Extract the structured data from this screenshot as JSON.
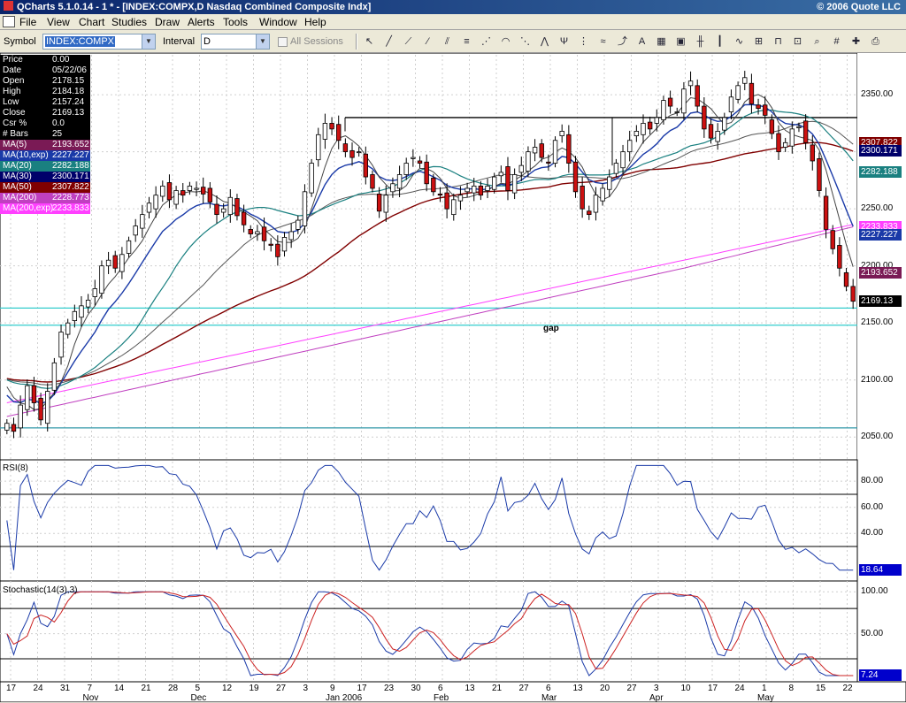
{
  "window": {
    "title": "QCharts 5.1.0.14 - 1 * - [INDEX:COMPX,D Nasdaq Combined Composite Indx]",
    "copyright": "© 2006 Quote LLC"
  },
  "menu": [
    "File",
    "View",
    "Chart",
    "Studies",
    "Draw",
    "Alerts",
    "Tools",
    "Window",
    "Help"
  ],
  "toolbar": {
    "symbol_label": "Symbol",
    "symbol_value": "INDEX:COMPX",
    "interval_label": "Interval",
    "interval_value": "D",
    "sessions_label": "All Sessions",
    "buttons": [
      "pointer-icon",
      "line-icon",
      "ray-icon",
      "extended-line-icon",
      "channel-icon",
      "fib-retracement-icon",
      "fib-fan-icon",
      "fib-arc-icon",
      "gann-fan-icon",
      "speed-line-icon",
      "andrews-pitchfork-icon",
      "cycle-line-icon",
      "regression-icon",
      "trend-icon",
      "text-icon",
      "chart-type-icon",
      "chart-properties-icon",
      "bar-style-icon",
      "candle-style-icon",
      "line-style-icon",
      "point-figure-icon",
      "kagi-icon",
      "log-scale-icon",
      "zoom-icon",
      "grid-icon",
      "crosshair-icon",
      "print-icon"
    ]
  },
  "info": {
    "rows": [
      {
        "label": "Price",
        "value": "0.00",
        "color": "#000000"
      },
      {
        "label": "Date",
        "value": "05/22/06",
        "color": "#000000"
      },
      {
        "label": "Open",
        "value": "2178.15",
        "color": "#000000"
      },
      {
        "label": "High",
        "value": "2184.18",
        "color": "#000000"
      },
      {
        "label": "Low",
        "value": "2157.24",
        "color": "#000000"
      },
      {
        "label": "Close",
        "value": "2169.13",
        "color": "#000000"
      },
      {
        "label": "Csr %",
        "value": "0.0",
        "color": "#000000"
      },
      {
        "label": "# Bars",
        "value": "25",
        "color": "#000000"
      },
      {
        "label": "MA(5)",
        "value": "2193.652",
        "color": "#7a1a55"
      },
      {
        "label": "MA(10,exp)",
        "value": "2227.227",
        "color": "#1a3aa8"
      },
      {
        "label": "MA(20)",
        "value": "2282.188",
        "color": "#1a8080"
      },
      {
        "label": "MA(30)",
        "value": "2300.171",
        "color": "#00006a"
      },
      {
        "label": "MA(50)",
        "value": "2307.822",
        "color": "#800000"
      },
      {
        "label": "MA(200)",
        "value": "2228.773",
        "color": "#c040c0"
      },
      {
        "label": "MA(200,exp)",
        "value": "2233.833",
        "color": "#ff40ff"
      }
    ]
  },
  "price_axis": [
    "2350.00",
    "2300.00",
    "2250.00",
    "2200.00",
    "2150.00",
    "2100.00",
    "2050.00"
  ],
  "price_tags": [
    {
      "value": "2307.822",
      "bg": "#800000",
      "fg": "#ffffff",
      "y": 2307.822
    },
    {
      "value": "2300.171",
      "bg": "#00006a",
      "fg": "#ffffff",
      "y": 2300.171
    },
    {
      "value": "2282.188",
      "bg": "#1a8080",
      "fg": "#ffffff",
      "y": 2282.188
    },
    {
      "value": "2233.833",
      "bg": "#ff40ff",
      "fg": "#ffffff",
      "y": 2233.833
    },
    {
      "value": "2227.227",
      "bg": "#1a3aa8",
      "fg": "#ffffff",
      "y": 2227.227
    },
    {
      "value": "2193.652",
      "bg": "#7a1a55",
      "fg": "#ffffff",
      "y": 2193.652
    },
    {
      "value": "2169.13",
      "bg": "#000000",
      "fg": "#ffffff",
      "y": 2169.13
    }
  ],
  "annotation": {
    "gap_label": "gap"
  },
  "rsi": {
    "title": "RSI(8)",
    "axis": [
      "80.00",
      "60.00",
      "40.00"
    ],
    "last": "18.64",
    "last_bg": "#0000cc"
  },
  "stoch": {
    "title": "Stochastic(14(3),3)",
    "axis": [
      "100.00",
      "50.00"
    ],
    "last": "7.24",
    "last_bg": "#0000cc"
  },
  "date_axis": {
    "days": [
      "17",
      "24",
      "31",
      "7",
      "14",
      "21",
      "28",
      "5",
      "12",
      "19",
      "27",
      "3",
      "9",
      "17",
      "23",
      "30",
      "6",
      "13",
      "21",
      "27",
      "6",
      "13",
      "20",
      "27",
      "3",
      "10",
      "17",
      "24",
      "1",
      "8",
      "15",
      "22"
    ],
    "months": [
      "Nov",
      "Dec",
      "Jan 2006",
      "Feb",
      "Mar",
      "Apr",
      "May"
    ]
  },
  "chart_data": {
    "type": "candlestick",
    "symbol": "INDEX:COMPX",
    "interval": "D",
    "ylim": [
      2030,
      2385
    ],
    "closes": [
      2062,
      2055,
      2078,
      2095,
      2080,
      2065,
      2090,
      2115,
      2142,
      2150,
      2160,
      2165,
      2170,
      2180,
      2200,
      2205,
      2198,
      2210,
      2222,
      2235,
      2245,
      2255,
      2262,
      2270,
      2258,
      2266,
      2262,
      2270,
      2268,
      2263,
      2256,
      2245,
      2250,
      2260,
      2244,
      2236,
      2228,
      2230,
      2222,
      2218,
      2208,
      2225,
      2230,
      2240,
      2265,
      2290,
      2315,
      2325,
      2320,
      2310,
      2300,
      2295,
      2300,
      2278,
      2268,
      2248,
      2262,
      2272,
      2280,
      2290,
      2295,
      2290,
      2272,
      2265,
      2262,
      2250,
      2258,
      2262,
      2268,
      2270,
      2262,
      2270,
      2278,
      2282,
      2266,
      2280,
      2288,
      2300,
      2304,
      2295,
      2290,
      2310,
      2318,
      2290,
      2265,
      2250,
      2245,
      2262,
      2268,
      2278,
      2290,
      2300,
      2310,
      2318,
      2325,
      2320,
      2330,
      2345,
      2340,
      2335,
      2355,
      2362,
      2340,
      2320,
      2312,
      2318,
      2330,
      2348,
      2358,
      2365,
      2342,
      2338,
      2332,
      2316,
      2300,
      2308,
      2320,
      2322,
      2308,
      2292,
      2266,
      2232,
      2215,
      2198,
      2182,
      2169
    ],
    "ma5_last": 2193.652,
    "ma10exp_last": 2227.227,
    "ma20_last": 2282.188,
    "ma30_last": 2300.171,
    "ma50_last": 2307.822,
    "ma200_last": 2228.773,
    "ma200exp_last": 2233.833,
    "hlines": [
      2330,
      2163,
      2148,
      2058
    ],
    "rsi_levels": [
      70,
      30
    ],
    "stoch_levels": [
      80,
      20
    ]
  }
}
